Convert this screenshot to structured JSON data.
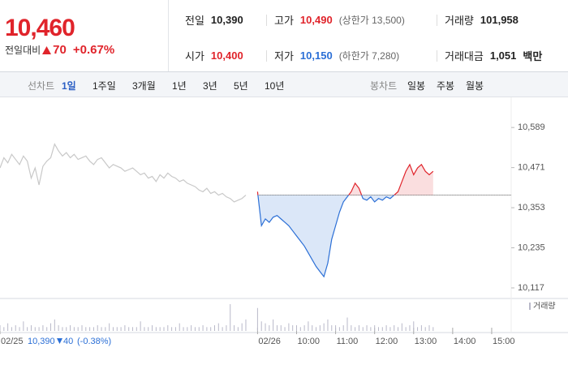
{
  "header": {
    "price": "10,460",
    "change_label": "전일대비",
    "change": "70",
    "change_pct": "+0.67%"
  },
  "stats": [
    {
      "label": "전일",
      "value": "10,390"
    },
    {
      "label": "고가",
      "value": "10,490",
      "note": "(상한가 13,500)"
    },
    {
      "label": "거래량",
      "value": "101,958"
    },
    {
      "label": "시가",
      "value": "10,400"
    },
    {
      "label": "저가",
      "value": "10,150",
      "note": "(하한가 7,280)"
    },
    {
      "label": "거래대금",
      "value": "1,051",
      "unit": "백만"
    }
  ],
  "tabs": {
    "line_label": "선차트",
    "periods": [
      "1일",
      "1주일",
      "3개월",
      "1년",
      "3년",
      "5년",
      "10년"
    ],
    "active": "1일",
    "candle_label": "봉차트",
    "candles": [
      "일봉",
      "주봉",
      "월봉"
    ]
  },
  "chart_data": {
    "type": "line",
    "x": [
      0,
      0.1,
      0.2,
      0.3,
      0.4,
      0.5,
      0.6,
      0.7,
      0.8,
      0.9,
      1,
      1.1,
      1.2,
      1.3,
      1.4,
      1.5,
      1.6,
      1.7,
      1.8,
      1.9,
      2,
      2.1,
      2.2,
      2.3,
      2.4,
      2.5,
      2.6,
      2.7,
      2.8,
      2.9,
      3,
      3.1,
      3.2,
      3.3,
      3.4,
      3.5,
      3.6,
      3.7,
      3.8,
      3.9,
      4,
      4.1,
      4.2,
      4.3,
      4.4,
      4.5,
      4.6,
      4.7,
      4.8,
      4.9,
      5,
      5.1,
      5.2,
      5.3,
      5.4,
      5.5,
      5.6,
      5.7,
      5.8,
      5.9,
      6,
      6.1,
      6.2,
      6.3,
      6.6,
      6.7,
      6.8,
      6.9,
      7,
      7.1,
      7.2,
      7.3,
      7.4,
      7.5,
      7.6,
      7.7,
      7.8,
      7.9,
      8,
      8.1,
      8.2,
      8.3,
      8.4,
      8.5,
      8.6,
      8.7,
      8.8,
      8.9,
      9,
      9.1,
      9.2,
      9.3,
      9.4,
      9.5,
      9.6,
      9.7,
      9.8,
      9.9,
      10,
      10.1,
      10.2,
      10.3,
      10.4,
      10.5,
      10.6,
      10.7,
      10.8,
      10.9,
      11,
      11.1
    ],
    "series": [
      {
        "color": "#c8c8c8",
        "values": [
          10470,
          10500,
          10485,
          10510,
          10495,
          10480,
          10505,
          10490,
          10440,
          10470,
          10420,
          10475,
          10490,
          10500,
          10540,
          10520,
          10505,
          10515,
          10500,
          10510,
          10495,
          10500,
          10505,
          10490,
          10480,
          10495,
          10500,
          10485,
          10470,
          10480,
          10475,
          10470,
          10460,
          10465,
          10470,
          10460,
          10450,
          10455,
          10440,
          10445,
          10430,
          10450,
          10440,
          10455,
          10445,
          10440,
          10430,
          10435,
          10425,
          10420,
          10415,
          10405,
          10400,
          10410,
          10395,
          10400,
          10390,
          10395,
          10385,
          10380,
          10370,
          10375,
          10380,
          10390,
          null,
          null,
          null,
          null,
          null,
          null,
          null,
          null,
          null,
          null,
          null,
          null,
          null,
          null,
          null,
          null,
          null,
          null,
          null,
          null,
          null,
          null,
          null,
          null,
          null,
          null,
          null,
          null,
          null,
          null,
          null,
          null,
          null,
          null,
          null,
          null,
          null,
          null,
          null,
          null,
          null,
          null,
          null,
          null,
          null,
          null
        ]
      },
      {
        "color": "#e0242b",
        "down_color": "#2b6fd6",
        "values": [
          null,
          null,
          null,
          null,
          null,
          null,
          null,
          null,
          null,
          null,
          null,
          null,
          null,
          null,
          null,
          null,
          null,
          null,
          null,
          null,
          null,
          null,
          null,
          null,
          null,
          null,
          null,
          null,
          null,
          null,
          null,
          null,
          null,
          null,
          null,
          null,
          null,
          null,
          null,
          null,
          null,
          null,
          null,
          null,
          null,
          null,
          null,
          null,
          null,
          null,
          null,
          null,
          null,
          null,
          null,
          null,
          null,
          null,
          null,
          null,
          null,
          null,
          null,
          null,
          10400,
          10300,
          10320,
          10310,
          10325,
          10330,
          10320,
          10310,
          10300,
          10285,
          10270,
          10255,
          10240,
          10220,
          10200,
          10180,
          10165,
          10150,
          10190,
          10260,
          10300,
          10340,
          10370,
          10385,
          10400,
          10425,
          10410,
          10380,
          10375,
          10385,
          10370,
          10380,
          10375,
          10385,
          10380,
          10390,
          10400,
          10430,
          10460,
          10480,
          10450,
          10470,
          10480,
          10460,
          10450,
          10460
        ]
      }
    ],
    "baseline": 10390,
    "volume_label": "거래량",
    "volume_color": "#b9b9c9",
    "volume": [
      3,
      2,
      4,
      2,
      3,
      2,
      5,
      2,
      3,
      2,
      2,
      3,
      2,
      4,
      6,
      3,
      2,
      2,
      3,
      2,
      2,
      3,
      2,
      2,
      2,
      3,
      2,
      2,
      4,
      2,
      2,
      2,
      3,
      2,
      2,
      2,
      5,
      2,
      2,
      3,
      2,
      2,
      2,
      3,
      2,
      2,
      4,
      2,
      2,
      3,
      2,
      2,
      3,
      2,
      2,
      3,
      4,
      2,
      3,
      14,
      3,
      2,
      4,
      6,
      12,
      5,
      4,
      3,
      6,
      3,
      3,
      2,
      4,
      3,
      3,
      2,
      3,
      5,
      3,
      2,
      3,
      4,
      6,
      3,
      3,
      2,
      3,
      7,
      3,
      2,
      3,
      2,
      3,
      2,
      3,
      2,
      2,
      3,
      2,
      3,
      2,
      4,
      2,
      3,
      5,
      2,
      3,
      2,
      3,
      2
    ],
    "xlim": [
      0,
      13.1
    ],
    "xticks": [
      {
        "value": 0,
        "label": "02/25"
      },
      {
        "value": 6.6,
        "label": "02/26"
      },
      {
        "value": 7.6,
        "label": "10:00"
      },
      {
        "value": 8.6,
        "label": "11:00"
      },
      {
        "value": 9.6,
        "label": "12:00"
      },
      {
        "value": 10.6,
        "label": "13:00"
      },
      {
        "value": 11.6,
        "label": "14:00"
      },
      {
        "value": 12.6,
        "label": "15:00"
      }
    ],
    "ylim": [
      10093,
      10630
    ],
    "yticks": [
      {
        "value": 10589,
        "label": "10,589"
      },
      {
        "value": 10471,
        "label": "10,471"
      },
      {
        "value": 10353,
        "label": "10,353"
      },
      {
        "value": 10235,
        "label": "10,235"
      },
      {
        "value": 10117,
        "label": "10,117"
      }
    ],
    "prev_summary": {
      "price": "10,390",
      "change": "40",
      "change_pct": "(-0.38%)"
    }
  }
}
